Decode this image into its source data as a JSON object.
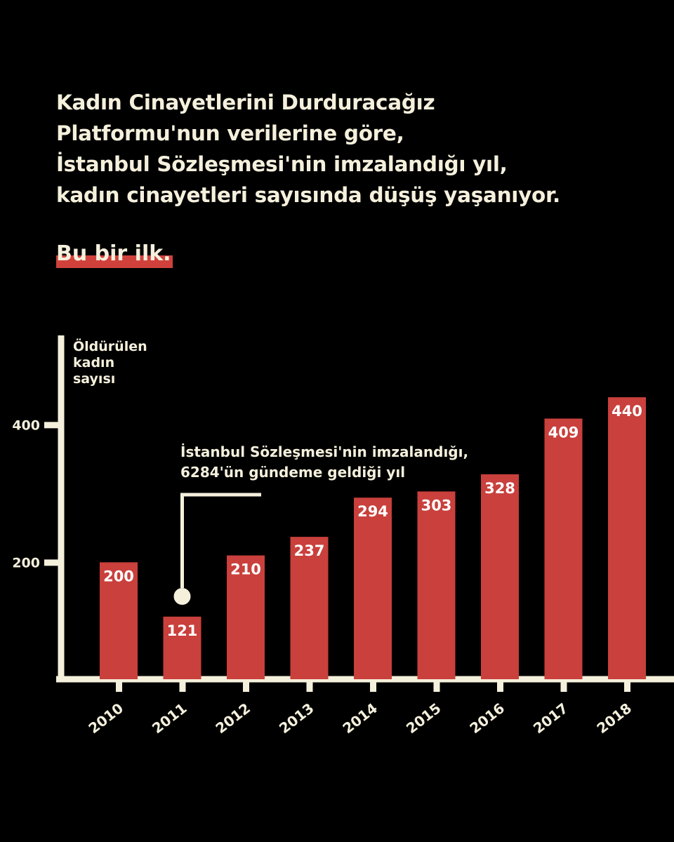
{
  "headline": {
    "lines": [
      "Kadın Cinayetlerini Durduracağız",
      "Platformu'nun verilerine göre,",
      "İstanbul Sözleşmesi'nin imzalandığı yıl,",
      "kadın cinayetleri sayısında düşüş yaşanıyor."
    ],
    "highlight": "Bu bir ilk."
  },
  "annotation": {
    "lines": [
      "İstanbul Sözleşmesi'nin imzalandığı,",
      "6284'ün gündeme geldiği yıl"
    ],
    "target_category": "2011"
  },
  "colors": {
    "background": "#000000",
    "bar": "#c9403c",
    "axis": "#f5f0dc",
    "text": "#f5f0dc"
  },
  "chart_data": {
    "type": "bar",
    "categories": [
      "2010",
      "2011",
      "2012",
      "2013",
      "2014",
      "2015",
      "2016",
      "2017",
      "2018"
    ],
    "values": [
      200,
      121,
      210,
      237,
      294,
      303,
      328,
      409,
      440
    ],
    "title": "",
    "xlabel": "",
    "ylabel": [
      "Öldürülen",
      "kadın",
      "sayısı"
    ],
    "yticks": [
      200,
      400
    ],
    "ylim": [
      30,
      534
    ],
    "grid": false,
    "data_labels": true
  }
}
